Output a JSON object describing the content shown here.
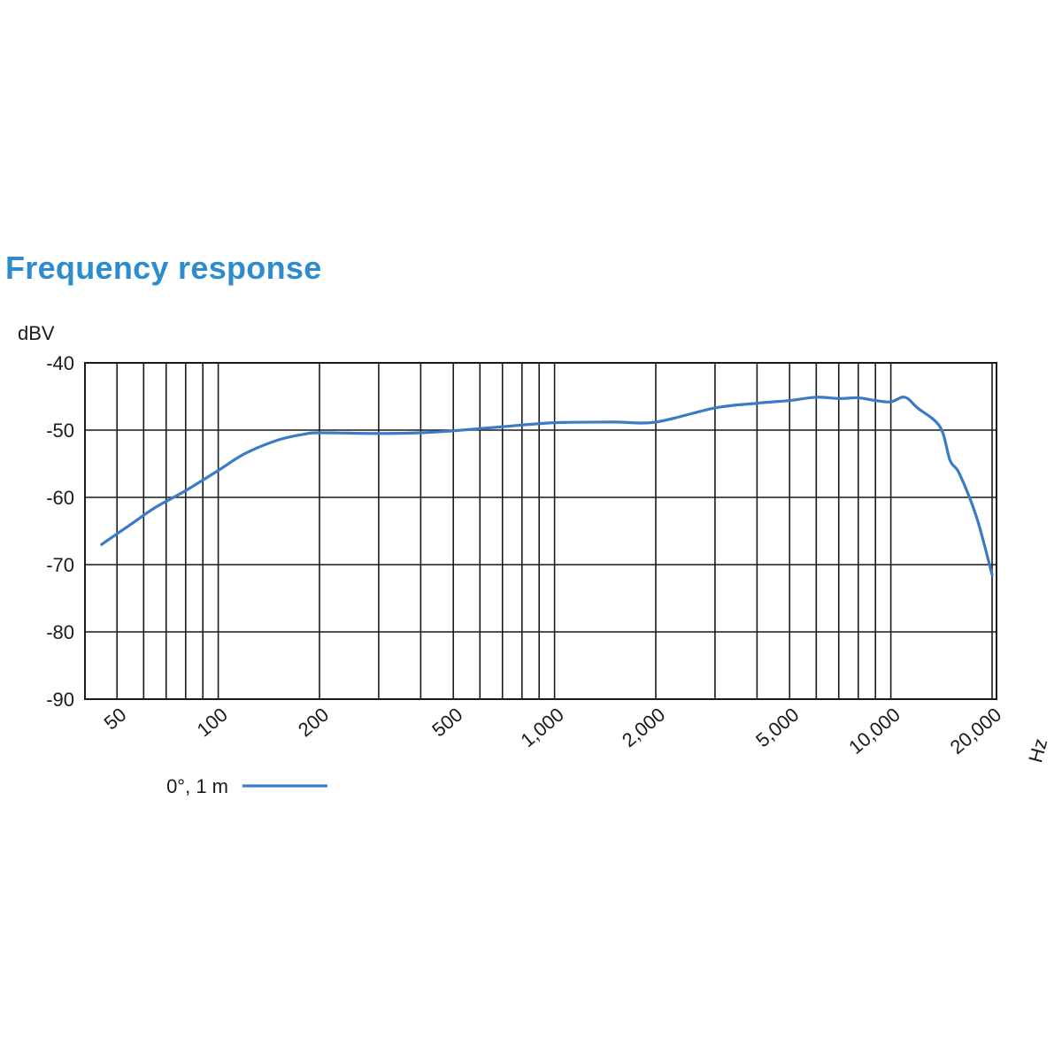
{
  "chart_data": {
    "type": "line",
    "title": "Frequency response",
    "ylabel": "dBV",
    "xlabel": "Hz",
    "x_scale": "log",
    "xlim": [
      40,
      20000
    ],
    "ylim": [
      -90,
      -40
    ],
    "grid": true,
    "x_gridlines": [
      50,
      60,
      70,
      80,
      90,
      100,
      200,
      300,
      400,
      500,
      600,
      700,
      800,
      900,
      1000,
      2000,
      3000,
      4000,
      5000,
      6000,
      7000,
      8000,
      9000,
      10000,
      20000
    ],
    "x_tick_labels": [
      {
        "value": 50,
        "label": "50"
      },
      {
        "value": 100,
        "label": "100"
      },
      {
        "value": 200,
        "label": "200"
      },
      {
        "value": 500,
        "label": "500"
      },
      {
        "value": 1000,
        "label": "1,000"
      },
      {
        "value": 2000,
        "label": "2,000"
      },
      {
        "value": 5000,
        "label": "5,000"
      },
      {
        "value": 10000,
        "label": "10,000"
      },
      {
        "value": 20000,
        "label": "20,000"
      }
    ],
    "y_ticks": [
      {
        "value": -40,
        "label": "-40"
      },
      {
        "value": -50,
        "label": "-50"
      },
      {
        "value": -60,
        "label": "-60"
      },
      {
        "value": -70,
        "label": "-70"
      },
      {
        "value": -80,
        "label": "-80"
      },
      {
        "value": -90,
        "label": "-90"
      }
    ],
    "series": [
      {
        "name": "0°, 1 m",
        "color": "#3a7cc4",
        "x": [
          45,
          55,
          65,
          80,
          100,
          120,
          150,
          180,
          200,
          300,
          400,
          500,
          700,
          1000,
          1500,
          2000,
          3000,
          4000,
          5000,
          6000,
          7000,
          8000,
          9000,
          10000,
          11000,
          12000,
          14000,
          15000,
          16000,
          18000,
          20000
        ],
        "y": [
          -67,
          -64,
          -61.5,
          -59,
          -56,
          -53.5,
          -51.5,
          -50.6,
          -50.4,
          -50.5,
          -50.4,
          -50.1,
          -49.5,
          -48.9,
          -48.8,
          -48.8,
          -46.7,
          -46,
          -45.6,
          -45.1,
          -45.3,
          -45.2,
          -45.6,
          -45.8,
          -45.1,
          -46.7,
          -49.5,
          -54.5,
          -56.5,
          -63,
          -71.5
        ]
      }
    ]
  }
}
